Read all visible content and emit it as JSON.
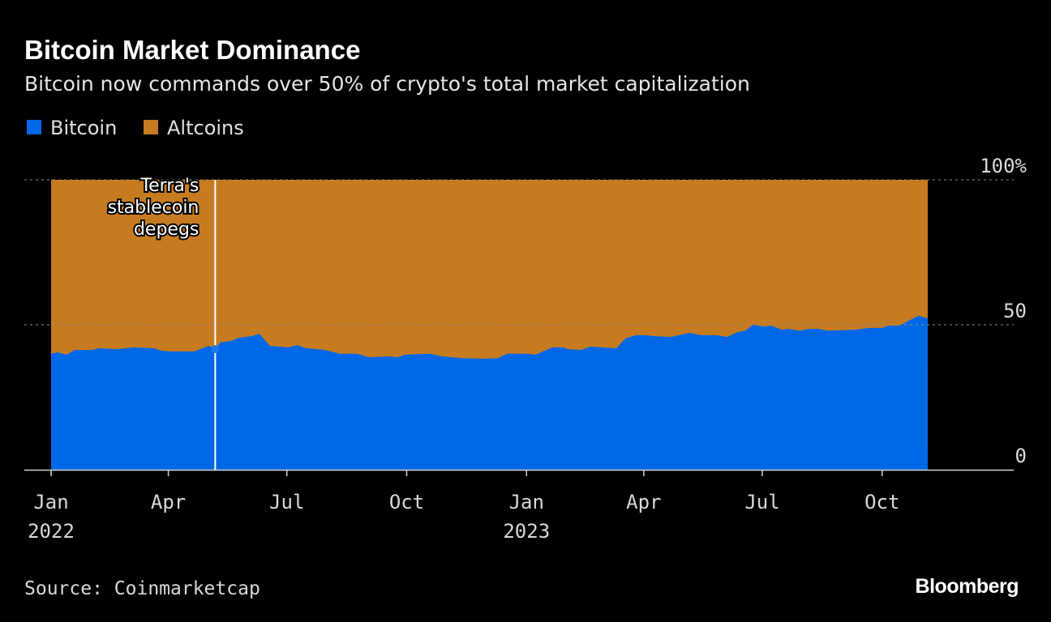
{
  "chart_data": {
    "type": "area",
    "title": "Bitcoin Market Dominance",
    "subtitle": "Bitcoin now commands over 50% of crypto's total market capitalization",
    "stacked_to": 100,
    "colors": {
      "Bitcoin": "#0068e6",
      "Altcoins": "#c77b20"
    },
    "legend": {
      "placement": "top-left",
      "items": [
        "Bitcoin",
        "Altcoins"
      ]
    },
    "xlim": [
      "2022-01-01",
      "2024-01-10"
    ],
    "ylim": [
      0,
      100
    ],
    "grid": "dotted horizontal at 50 and 100",
    "y_ticks": [
      {
        "value": 100,
        "label": "100%"
      },
      {
        "value": 50,
        "label": "50"
      },
      {
        "value": 0,
        "label": "0"
      }
    ],
    "x_ticks": [
      {
        "date": "2022-01-01",
        "label": "Jan",
        "year": "2022"
      },
      {
        "date": "2022-04-01",
        "label": "Apr",
        "year": ""
      },
      {
        "date": "2022-07-01",
        "label": "Jul",
        "year": ""
      },
      {
        "date": "2022-10-01",
        "label": "Oct",
        "year": ""
      },
      {
        "date": "2023-01-01",
        "label": "Jan",
        "year": "2023"
      },
      {
        "date": "2023-04-01",
        "label": "Apr",
        "year": ""
      },
      {
        "date": "2023-07-01",
        "label": "Jul",
        "year": ""
      },
      {
        "date": "2023-10-01",
        "label": "Oct",
        "year": ""
      }
    ],
    "series": [
      {
        "name": "Bitcoin",
        "x": [
          "2022-01-01",
          "2022-01-06",
          "2022-01-13",
          "2022-01-19",
          "2022-02-01",
          "2022-02-07",
          "2022-02-21",
          "2022-03-05",
          "2022-03-21",
          "2022-03-26",
          "2022-04-02",
          "2022-04-14",
          "2022-04-21",
          "2022-04-27",
          "2022-05-02",
          "2022-05-07",
          "2022-05-11",
          "2022-05-19",
          "2022-05-25",
          "2022-06-04",
          "2022-06-10",
          "2022-06-18",
          "2022-07-02",
          "2022-07-09",
          "2022-07-16",
          "2022-07-30",
          "2022-08-11",
          "2022-08-24",
          "2022-09-02",
          "2022-09-18",
          "2022-09-24",
          "2022-09-30",
          "2022-10-19",
          "2022-10-28",
          "2022-11-13",
          "2022-11-28",
          "2022-12-10",
          "2022-12-17",
          "2023-01-01",
          "2023-01-08",
          "2023-01-21",
          "2023-01-29",
          "2023-02-02",
          "2023-02-12",
          "2023-02-19",
          "2023-02-28",
          "2023-03-11",
          "2023-03-18",
          "2023-03-26",
          "2023-04-03",
          "2023-04-08",
          "2023-04-22",
          "2023-05-06",
          "2023-05-15",
          "2023-05-27",
          "2023-06-04",
          "2023-06-12",
          "2023-06-18",
          "2023-06-24",
          "2023-07-01",
          "2023-07-08",
          "2023-07-16",
          "2023-07-21",
          "2023-07-30",
          "2023-08-06",
          "2023-08-13",
          "2023-08-20",
          "2023-09-10",
          "2023-09-21",
          "2023-10-01",
          "2023-10-06",
          "2023-10-14",
          "2023-10-29",
          "2023-11-05"
        ],
        "values": [
          40.0,
          40.5,
          39.7,
          41.3,
          41.3,
          41.9,
          41.6,
          42.2,
          41.9,
          41.1,
          40.8,
          40.8,
          40.8,
          41.9,
          42.7,
          41.6,
          43.9,
          44.4,
          45.5,
          46.1,
          46.9,
          42.7,
          42.2,
          43.0,
          41.9,
          41.3,
          40.0,
          40.0,
          38.8,
          39.1,
          38.8,
          39.7,
          40.0,
          39.1,
          38.5,
          38.3,
          38.5,
          40.0,
          40.0,
          39.7,
          42.2,
          42.2,
          41.6,
          41.3,
          42.5,
          42.2,
          41.9,
          45.3,
          46.4,
          46.4,
          46.1,
          45.8,
          47.2,
          46.4,
          46.4,
          45.8,
          47.5,
          48.0,
          50.0,
          49.4,
          49.7,
          48.3,
          48.6,
          48.0,
          48.6,
          48.6,
          48.0,
          48.3,
          48.9,
          48.9,
          49.7,
          49.7,
          53.1,
          52.2
        ]
      },
      {
        "name": "Altcoins",
        "note_fill": "remainder to 100%"
      }
    ],
    "annotations": [
      {
        "date": "2022-05-07",
        "lines": [
          "Terra's",
          "stablecoin",
          "depegs"
        ]
      }
    ]
  },
  "footer": {
    "source": "Source: Coinmarketcap",
    "logo": "Bloomberg"
  }
}
